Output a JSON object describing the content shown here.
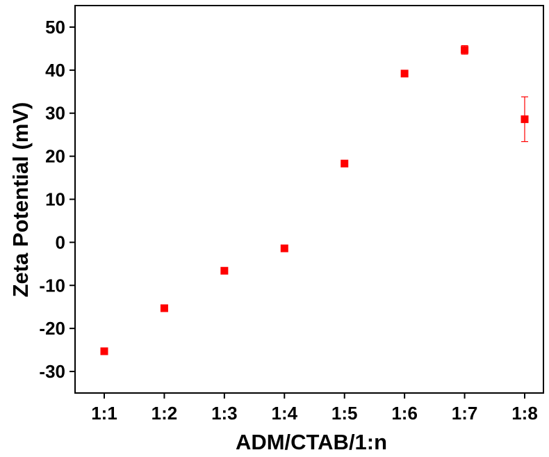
{
  "chart_data": {
    "type": "scatter",
    "title": "",
    "xlabel": "ADM/CTAB/1:n",
    "ylabel": "Zeta Potential (mV)",
    "categories": [
      "1:1",
      "1:2",
      "1:3",
      "1:4",
      "1:5",
      "1:6",
      "1:7",
      "1:8"
    ],
    "series": [
      {
        "values": [
          -25.3,
          -15.3,
          -6.6,
          -1.4,
          18.3,
          39.2,
          44.7,
          28.6
        ],
        "errors": [
          0.6,
          0.5,
          0.5,
          0.6,
          0.6,
          0.6,
          1.0,
          5.2
        ]
      }
    ],
    "ylim": [
      -35,
      55
    ],
    "yticks": [
      -30,
      -20,
      -10,
      0,
      10,
      20,
      30,
      40,
      50
    ],
    "grid": false,
    "legend": "none",
    "marker": "square",
    "color": "#ff0000",
    "axis_color": "#000000"
  }
}
